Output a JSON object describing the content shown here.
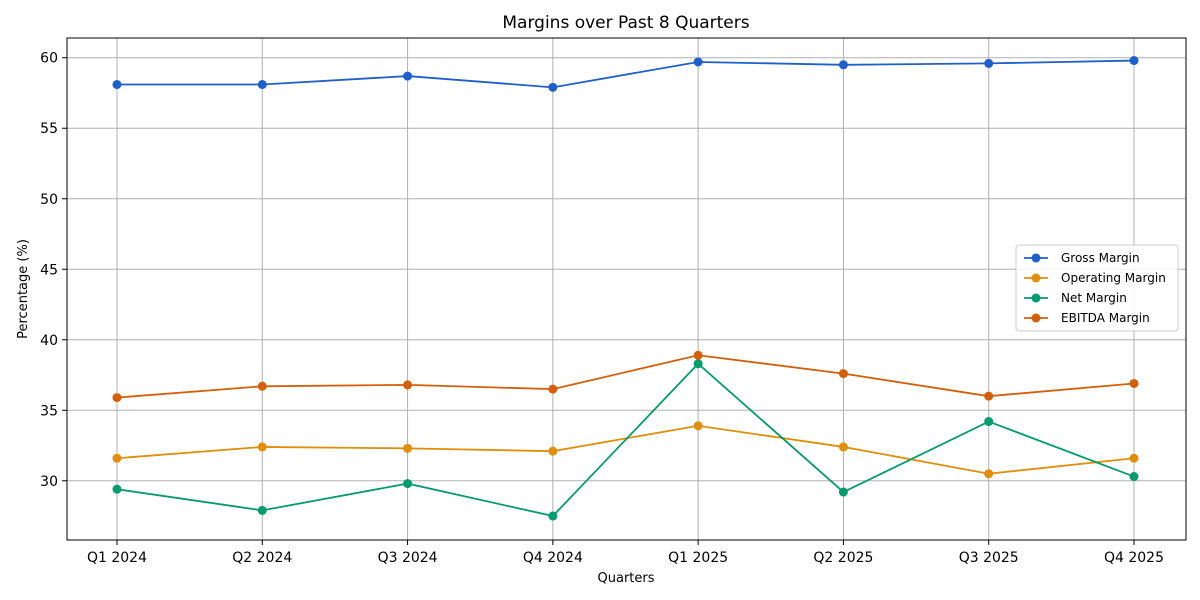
{
  "chart_data": {
    "type": "line",
    "title": "Margins over Past 8 Quarters",
    "xlabel": "Quarters",
    "ylabel": "Percentage (%)",
    "categories": [
      "Q1 2024",
      "Q2 2024",
      "Q3 2024",
      "Q4 2024",
      "Q1 2025",
      "Q2 2025",
      "Q3 2025",
      "Q4 2025"
    ],
    "ylim": [
      25.8,
      61.4
    ],
    "yticks": [
      30,
      35,
      40,
      45,
      50,
      55,
      60
    ],
    "grid": true,
    "legend_position": "center-right",
    "series": [
      {
        "name": "Gross Margin",
        "color": "#1f5fc8",
        "values": [
          58.1,
          58.1,
          58.7,
          57.9,
          59.7,
          59.5,
          59.6,
          59.8
        ]
      },
      {
        "name": "Operating Margin",
        "color": "#e08e0b",
        "values": [
          31.6,
          32.4,
          32.3,
          32.1,
          33.9,
          32.4,
          30.5,
          31.6
        ]
      },
      {
        "name": "Net Margin",
        "color": "#079a6e",
        "values": [
          29.4,
          27.9,
          29.8,
          27.5,
          38.3,
          29.2,
          34.2,
          30.3
        ]
      },
      {
        "name": "EBITDA Margin",
        "color": "#d45f0a",
        "values": [
          35.9,
          36.7,
          36.8,
          36.5,
          38.9,
          37.6,
          36.0,
          36.9
        ]
      }
    ]
  }
}
